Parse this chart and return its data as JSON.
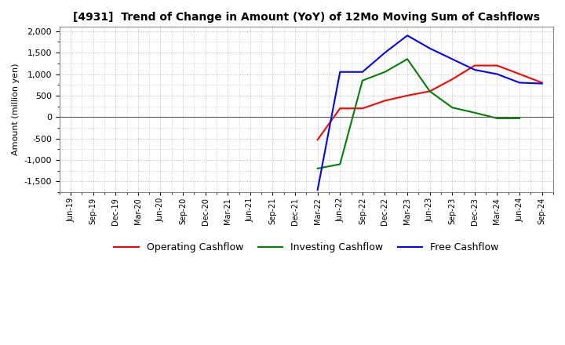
{
  "title": "[4931]  Trend of Change in Amount (YoY) of 12Mo Moving Sum of Cashflows",
  "ylabel": "Amount (million yen)",
  "ylim": [
    -1750,
    2100
  ],
  "yticks": [
    -1500,
    -1000,
    -500,
    0,
    500,
    1000,
    1500,
    2000
  ],
  "background_color": "#ffffff",
  "plot_bg_color": "#ffffff",
  "grid_color": "#aaaaaa",
  "x_labels": [
    "Jun-19",
    "Sep-19",
    "Dec-19",
    "Mar-20",
    "Jun-20",
    "Sep-20",
    "Dec-20",
    "Mar-21",
    "Jun-21",
    "Sep-21",
    "Dec-21",
    "Mar-22",
    "Jun-22",
    "Sep-22",
    "Dec-22",
    "Mar-23",
    "Jun-23",
    "Sep-23",
    "Dec-23",
    "Mar-24",
    "Jun-24",
    "Sep-24"
  ],
  "operating_cashflow": [
    null,
    null,
    null,
    null,
    null,
    null,
    null,
    null,
    null,
    null,
    null,
    -530,
    200,
    200,
    380,
    500,
    600,
    880,
    1200,
    1200,
    1000,
    800
  ],
  "investing_cashflow": [
    null,
    null,
    null,
    null,
    null,
    null,
    null,
    null,
    null,
    null,
    null,
    -1200,
    -1100,
    850,
    1050,
    1350,
    600,
    220,
    100,
    -30,
    -30,
    null
  ],
  "free_cashflow": [
    null,
    null,
    null,
    null,
    null,
    null,
    null,
    null,
    null,
    null,
    null,
    -1700,
    1050,
    1050,
    1500,
    1900,
    1600,
    1350,
    1100,
    1000,
    800,
    780
  ],
  "line_colors": {
    "operating": "#ff0000",
    "investing": "#008000",
    "free": "#0000ff"
  },
  "legend_labels": [
    "Operating Cashflow",
    "Investing Cashflow",
    "Free Cashflow"
  ]
}
